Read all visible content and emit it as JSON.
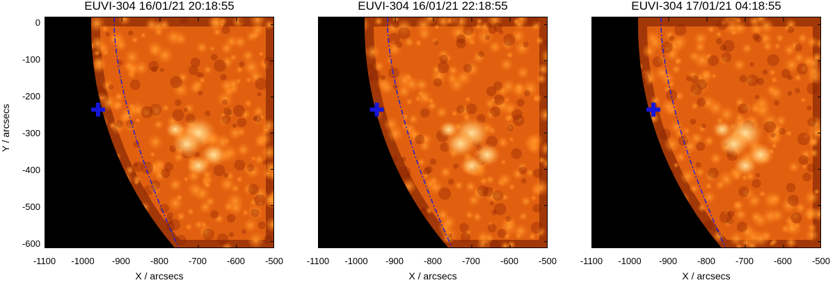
{
  "panels": [
    {
      "title": "EUVI-304 16/01/21 20:18:55",
      "marker": {
        "x": -962,
        "y": -235
      }
    },
    {
      "title": "EUVI-304 16/01/21 22:18:55",
      "marker": {
        "x": -948,
        "y": -235
      }
    },
    {
      "title": "EUVI-304 17/01/21 04:18:55",
      "marker": {
        "x": -940,
        "y": -235
      }
    }
  ],
  "axes": {
    "xlabel": "X / arcsecs",
    "ylabel": "Y / arcsecs",
    "xlim": [
      -1100,
      -500
    ],
    "ylim": [
      -620,
      20
    ],
    "xticks": [
      "-1100",
      "-1000",
      "-900",
      "-800",
      "-700",
      "-600",
      "-500"
    ],
    "yticks": [
      "0",
      "-100",
      "-200",
      "-300",
      "-400",
      "-500",
      "-600"
    ]
  },
  "colors": {
    "marker": "#1616d8",
    "dashed_line": "#2020d0",
    "disk_bright": "#ffe2a0",
    "disk_mid": "#e06010",
    "disk_dark": "#a82800",
    "space": "#000000"
  },
  "icons": {
    "marker": "plus-marker-icon"
  }
}
